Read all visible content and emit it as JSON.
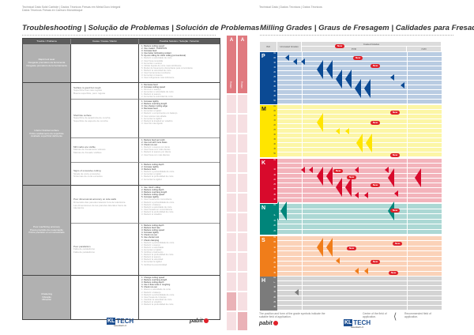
{
  "left_page": {
    "header_lines": [
      "Technical Data Solid Carbide | Dados Técnicos Fresas em Metal Duro Integral",
      "Datos Técnicos Fresas en Carburo Monobloque"
    ],
    "title": "Troubleshooting | Solução de Problemas | Solución de Problemas",
    "columns": [
      "Trouble / Problema",
      "Cause / Causa / Razón",
      "Possible Solution / Solução / Solución"
    ],
    "groups": [
      {
        "problem": "Rapid tool wear\nDesgaste prematuro da ferramenta\nDesgaste prematuro de la herramienta",
        "causes": [
          {
            "text": [
              "",
              ""
            ],
            "solutions": {
              "d": [
                "1. Reduce cutting speed",
                "2. Use coated - TiAlN/TiCN",
                "3. Increase feed",
                "4. Use better lubricating coolant",
                "5. Up-cut milling for climb milling (conventional)"
              ],
              "l": [
                "1. Reduzir a velocidade de corte",
                "2. Usar fresa revestida",
                "3. Aumentar o avanço",
                "4. Utilizar líquido de corte mais lubrificante",
                "5. Mudar de fresamento discordante para concordante",
                "1. Reducir la velocidad de corte",
                "2. Usar herramienta recubierta",
                "3. Aumentar el avance",
                "4. Usar refrigerante más lubricante"
              ]
            }
          }
        ]
      },
      {
        "problem": "Inferior finished surface\nPobre acabamento da superfície\nAcabado superficial deficiente",
        "causes": [
          {
            "text": [
              "Surface is good but rough",
              "Superfície boa mas rugosa",
              "Buena superficie, pero rugosa"
            ],
            "solutions": {
              "d": [
                "1. Decrease feed",
                "2. Increase cutting speed"
              ],
              "l": [
                "1. Diminuir o avanço",
                "2. Aumentar a velocidade de corte",
                "1. Reducir el avance",
                "2. Aumentar la velocidad de corte"
              ]
            }
          },
          {
            "text": [
              "Shell like surface",
              "Superfície de aparência de concha",
              "Superficie de aspecto de concha"
            ],
            "solutions": {
              "d": [
                "1. Increase rigidity",
                "2. Reduce overhang length",
                "3. Use sharper cutting edge",
                "4. Decrease feed"
              ],
              "l": [
                "1. Aumentar a rigidez",
                "2. Reduzir o comprimento em balanço",
                "3. Usar aresta mais afiada",
                "1. Aumentar la rigidez",
                "2. Reducir la longitud en voladizo",
                "3. Usar filo más agudo"
              ]
            }
          },
          {
            "text": [
              "Mill marks are visible",
              "Marcas de fresamento visíveis",
              "Marcas de fresado visibles"
            ],
            "solutions": {
              "d": [
                "1. Reduce feed per tooth",
                "2. Use tool with more flutes",
                "3. Check run-out"
              ],
              "l": [
                "1. Reduzir o avanço por dente",
                "2. Usar fresa com mais dentes",
                "1. Reducir el avance por diente",
                "2. Usar fresa con más dientes"
              ]
            }
          },
          {
            "text": [
              "Signs of excessive cutting",
              "Sinais de corte excessivo",
              "Síntomas de corte excesivo"
            ],
            "solutions": {
              "d": [
                "1. Reduce cutting depth",
                "2. Increase rigidity",
                "3. Reduce feed"
              ],
              "l": [
                "1. Reduzir a profundidade de corte",
                "2. Aumentar a rigidez",
                "1. Reducir la profundidad de corte",
                "2. Aumentar la rigidez"
              ]
            }
          }
        ]
      },
      {
        "problem": "Poor machining accuracy\nPouca precisão da maquinação\nPobre precisión en el mecanizado",
        "causes": [
          {
            "text": [
              "Poor dimensional accuracy on side walls",
              "Dimensão das paredes laterais fora de tolerância",
              "Las dimensiones de las paredes laterales fuera de tolerancia"
            ],
            "solutions": {
              "d": [
                "1. Use 'climb' milling",
                "2. Reduce cutting depth",
                "3. Reduce overhang length",
                "4. Reduce cutting speed",
                "5. Increase rigidity"
              ],
              "l": [
                "1. Usar fresamento concordante",
                "2. Reduzir a profundidade de corte",
                "3. Reduzir o balanço",
                "4. Reduzir a velocidade de corte",
                "1. Usar fresado en concordancia",
                "2. Reducir la profundidad de corte",
                "3. Reducir el voladizo"
              ]
            }
          },
          {
            "text": [
              "Poor parallelism",
              "Falta de paralelismo",
              "Falta de paralelismo"
            ],
            "solutions": {
              "d": [
                "1. Reduce cutting depth",
                "2. Reduce feed rate",
                "3. Reduce cutting speed",
                "4. Increase rigidity",
                "5. Check run-out",
                "6. Use shorter tool",
                "7. Check clamping"
              ],
              "l": [
                "1. Reduzir a profundidade de corte",
                "2. Reduzir o avanço",
                "3. Reduzir a velocidade",
                "4. Aumentar a rigidez",
                "5. Verificar o batimento",
                "1. Reducir la profundidad de corte",
                "2. Reducir el avance",
                "3. Reducir la velocidad",
                "4. Aumentar la rigidez",
                "5. Verificar la excentricidad"
              ]
            }
          }
        ]
      },
      {
        "problem": "Chattering\nVibração\nVibración",
        "causes": [
          {
            "text": [
              "",
              ""
            ],
            "solutions": {
              "d": [
                "1. Change cutting speed",
                "2. Reduce overhang length",
                "3. Reduce cutting depth",
                "4. Use 3 flute tools in roughing",
                "5. Check run-out"
              ],
              "l": [
                "1. Alterar a velocidade de corte",
                "2. Reduzir o balanço",
                "3. Reduzir a profundidade de corte",
                "4. Usar fresas de 3 dentes",
                "1. Cambiar la velocidad de corte",
                "2. Reducir el voladizo",
                "3. Reducir la profundidad de corte"
              ]
            }
          }
        ]
      }
    ],
    "tab_letter": "A",
    "tab_label": "Milling"
  },
  "right_page": {
    "header_line": "Technical Data | Dados Técnicos | Datos Técnicos",
    "title": "Milling Grades | Graus de Fresagem | Calidades para Fresado",
    "columns": {
      "iso": "ISO",
      "uncoated": "Uncoated Grades",
      "coated": "Coated Grades",
      "pvd": "PVD",
      "cvd": "CVD"
    },
    "new_badge": "New",
    "iso_groups": [
      {
        "letter": "P",
        "color": "#0b4a94",
        "bg": "#b9cce2",
        "rows": [
          "01",
          "05",
          "10",
          "15",
          "20",
          "25",
          "30",
          "35",
          "40",
          "45",
          "50"
        ]
      },
      {
        "letter": "M",
        "color": "#ffe500",
        "bg": "#fcf6a6",
        "rows": [
          "01",
          "05",
          "10",
          "15",
          "20",
          "25",
          "30",
          "35",
          "40",
          "45",
          "50"
        ]
      },
      {
        "letter": "K",
        "color": "#d80a2c",
        "bg": "#f3b3bb",
        "rows": [
          "01",
          "05",
          "10",
          "15",
          "20",
          "25",
          "30",
          "35",
          "40"
        ]
      },
      {
        "letter": "N",
        "color": "#00857a",
        "bg": "#acd8d4",
        "rows": [
          "01",
          "05",
          "10",
          "15",
          "20",
          "25"
        ]
      },
      {
        "letter": "S",
        "color": "#f07d1a",
        "bg": "#fbd2b8",
        "rows": [
          "01",
          "05",
          "10",
          "15",
          "20",
          "25",
          "30",
          "35"
        ]
      },
      {
        "letter": "H",
        "color": "#7b7b7b",
        "bg": "#d4d4d4",
        "rows": [
          "01",
          "05",
          "10",
          "15",
          "20",
          "25",
          "30"
        ]
      }
    ],
    "legend": {
      "position": "The position and form of the grade symbols indicate the suitable field of application.",
      "centre": "Centre of the field of application.",
      "recommended": "Recommended field of application."
    },
    "tab_letter": "A",
    "tab_label": "Milling"
  },
  "brand": {
    "kl": "KL",
    "tech": "TECH",
    "url": "www.kltech.cz",
    "pabit": "pabit"
  }
}
